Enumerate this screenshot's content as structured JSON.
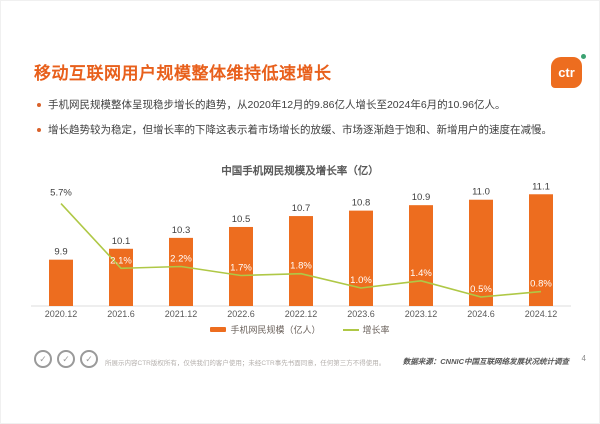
{
  "slide": {
    "title": "移动互联网用户规模整体维持低速增长",
    "logo_text": "ctr",
    "page_number": "4",
    "bullets": [
      "手机网民规模整体呈现稳步增长的趋势，从2020年12月的9.86亿人增长至2024年6月的10.96亿人。",
      "增长趋势较为稳定，但增长率的下降这表示着市场增长的放缓、市场逐渐趋于饱和、新增用户的速度在减慢。"
    ],
    "footer": {
      "disclaimer": "所展示内容CTR版权所有，仅供我们的客户使用；未经CTR事先书面同意，任何第三方不得使用。",
      "source": "数据来源：CNNIC中国互联网络发展状况统计调查"
    }
  },
  "colors": {
    "bar_orange": "#ed6d1f",
    "line_green": "#afc846",
    "title_orange": "#e8601c",
    "label_dark": "#3f3f3f",
    "label_white": "#ffffff",
    "axis_gray": "#dcdcdc",
    "tick_gray": "#595959"
  },
  "chart_data": {
    "type": "bar",
    "title": "中国手机网民规模及增长率（亿）",
    "categories": [
      "2020.12",
      "2021.6",
      "2021.12",
      "2022.6",
      "2022.12",
      "2023.6",
      "2023.12",
      "2024.6",
      "2024.12"
    ],
    "series": [
      {
        "name": "手机网民规模（亿人）",
        "type": "bar",
        "values": [
          9.9,
          10.1,
          10.3,
          10.5,
          10.7,
          10.8,
          10.9,
          11.0,
          11.1
        ]
      },
      {
        "name": "增长率",
        "type": "line",
        "values_pct": [
          5.7,
          2.1,
          2.2,
          1.7,
          1.8,
          1.0,
          1.4,
          0.5,
          0.8
        ]
      }
    ],
    "bar_axis_range": [
      9.05,
      11.16
    ],
    "line_axis_range": [
      0,
      6.4
    ],
    "legend_position": "bottom",
    "grid": "off"
  }
}
